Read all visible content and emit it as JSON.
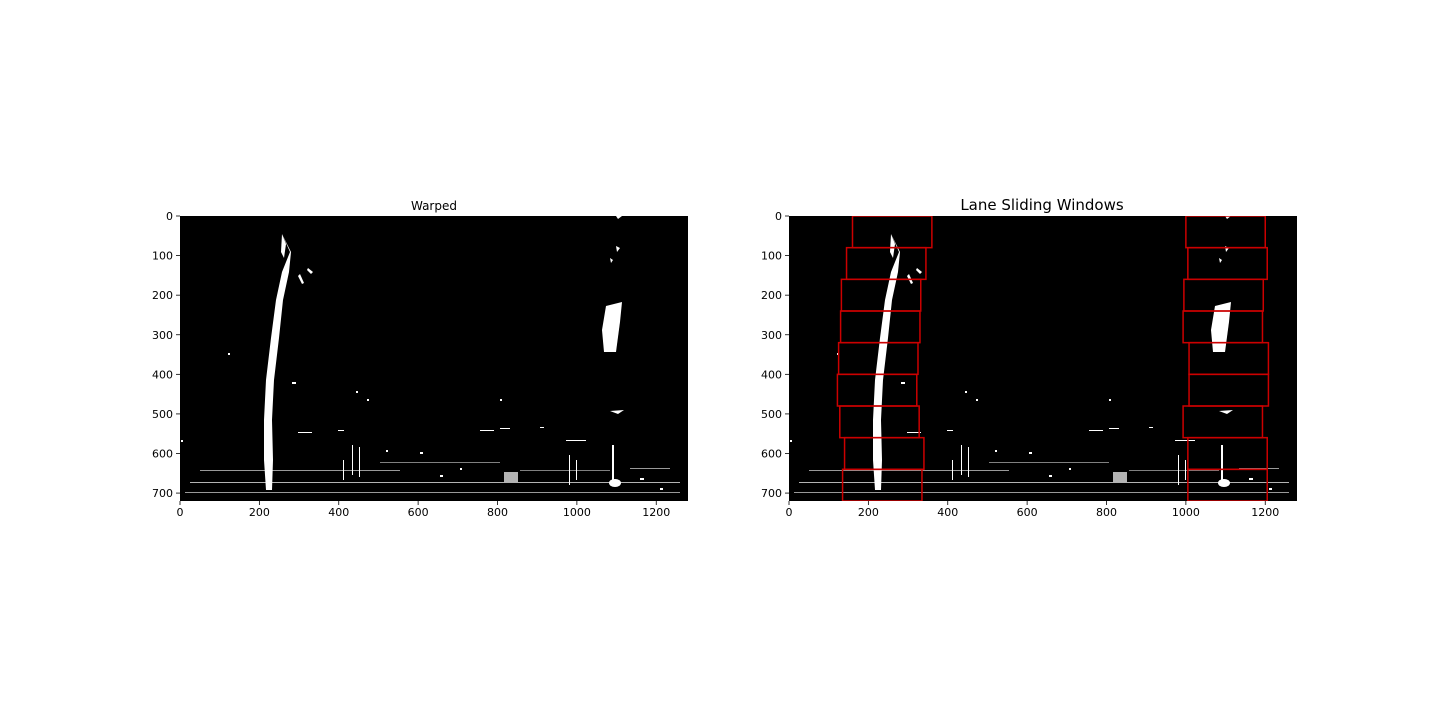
{
  "chart_data": [
    {
      "type": "image",
      "title": "Warped",
      "xlim": [
        0,
        1280
      ],
      "ylim": [
        720,
        0
      ],
      "xticks": [
        0,
        200,
        400,
        600,
        800,
        1000,
        1200
      ],
      "yticks": [
        0,
        100,
        200,
        300,
        400,
        500,
        600,
        700
      ],
      "image_description": "binary warped road image with two white lane markings"
    },
    {
      "type": "image",
      "title": "Lane Sliding Windows",
      "xlim": [
        0,
        1280
      ],
      "ylim": [
        720,
        0
      ],
      "xticks": [
        0,
        200,
        400,
        600,
        800,
        1000,
        1200
      ],
      "yticks": [
        0,
        100,
        200,
        300,
        400,
        500,
        600,
        700
      ],
      "window_color": "#cc0000",
      "window_height": 80,
      "left_windows": [
        {
          "x0": 160,
          "x1": 360,
          "y0": 0,
          "y1": 80
        },
        {
          "x0": 145,
          "x1": 345,
          "y0": 80,
          "y1": 160
        },
        {
          "x0": 132,
          "x1": 332,
          "y0": 160,
          "y1": 240
        },
        {
          "x0": 130,
          "x1": 330,
          "y0": 240,
          "y1": 320
        },
        {
          "x0": 125,
          "x1": 325,
          "y0": 320,
          "y1": 400
        },
        {
          "x0": 122,
          "x1": 322,
          "y0": 400,
          "y1": 480
        },
        {
          "x0": 128,
          "x1": 328,
          "y0": 480,
          "y1": 560
        },
        {
          "x0": 140,
          "x1": 340,
          "y0": 560,
          "y1": 640
        },
        {
          "x0": 135,
          "x1": 335,
          "y0": 640,
          "y1": 720
        }
      ],
      "right_windows": [
        {
          "x0": 1000,
          "x1": 1200,
          "y0": 0,
          "y1": 80
        },
        {
          "x0": 1005,
          "x1": 1205,
          "y0": 80,
          "y1": 160
        },
        {
          "x0": 995,
          "x1": 1195,
          "y0": 160,
          "y1": 240
        },
        {
          "x0": 993,
          "x1": 1193,
          "y0": 240,
          "y1": 320
        },
        {
          "x0": 1008,
          "x1": 1208,
          "y0": 320,
          "y1": 400
        },
        {
          "x0": 1008,
          "x1": 1208,
          "y0": 400,
          "y1": 480
        },
        {
          "x0": 993,
          "x1": 1193,
          "y0": 480,
          "y1": 560
        },
        {
          "x0": 1005,
          "x1": 1205,
          "y0": 560,
          "y1": 640
        },
        {
          "x0": 1005,
          "x1": 1205,
          "y0": 640,
          "y1": 720
        }
      ]
    }
  ]
}
